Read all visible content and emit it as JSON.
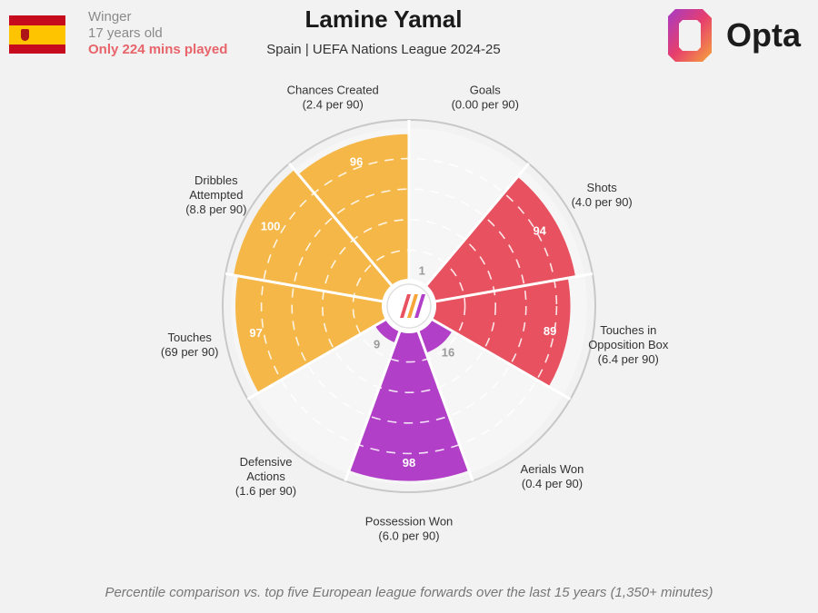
{
  "player": {
    "name": "Lamine Yamal",
    "position": "Winger",
    "age": "17 years old",
    "minutes_note": "Only 224 mins played",
    "competition": "Spain | UEFA Nations League 2024-25"
  },
  "brand": {
    "name": "Opta"
  },
  "footnote": "Percentile comparison vs. top five European league forwards over the last 15 years (1,350+ minutes)",
  "colors": {
    "attacking": "#e8515f",
    "possession": "#b23fc7",
    "creation": "#f5b748",
    "background": "#f2f2f2"
  },
  "chart_data": {
    "type": "radar-percentile",
    "max": 100,
    "metrics": [
      {
        "name": "Goals",
        "label": [
          "Goals"
        ],
        "per90": "(0.00 per 90)",
        "percentile": 1,
        "group": "attacking"
      },
      {
        "name": "Shots",
        "label": [
          "Shots"
        ],
        "per90": "(4.0 per 90)",
        "percentile": 94,
        "group": "attacking"
      },
      {
        "name": "Touches in Opposition Box",
        "label": [
          "Touches in",
          "Opposition Box"
        ],
        "per90": "(6.4 per 90)",
        "percentile": 89,
        "group": "attacking"
      },
      {
        "name": "Aerials Won",
        "label": [
          "Aerials Won"
        ],
        "per90": "(0.4 per 90)",
        "percentile": 16,
        "group": "possession"
      },
      {
        "name": "Possession Won",
        "label": [
          "Possession Won"
        ],
        "per90": "(6.0 per 90)",
        "percentile": 98,
        "group": "possession"
      },
      {
        "name": "Defensive Actions",
        "label": [
          "Defensive",
          "Actions"
        ],
        "per90": "(1.6 per 90)",
        "percentile": 9,
        "group": "possession"
      },
      {
        "name": "Touches",
        "label": [
          "Touches"
        ],
        "per90": "(69 per 90)",
        "percentile": 97,
        "group": "creation"
      },
      {
        "name": "Dribbles Attempted",
        "label": [
          "Dribbles",
          "Attempted"
        ],
        "per90": "(8.8 per 90)",
        "percentile": 100,
        "group": "creation"
      },
      {
        "name": "Chances Created",
        "label": [
          "Chances Created"
        ],
        "per90": "(2.4 per 90)",
        "percentile": 96,
        "group": "creation"
      }
    ]
  }
}
